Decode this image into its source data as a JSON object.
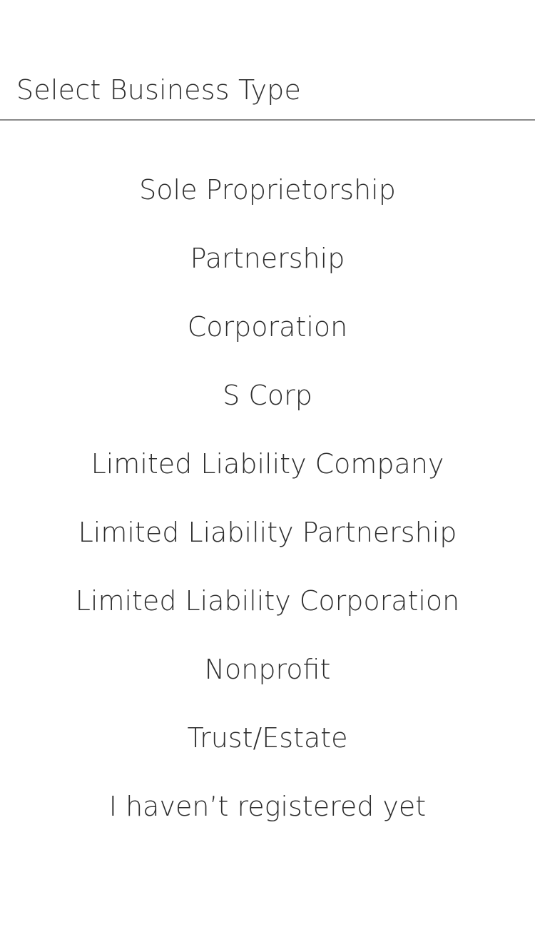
{
  "header": {
    "title": "Select Business Type"
  },
  "options": [
    "Sole Proprietorship",
    "Partnership",
    "Corporation",
    "S Corp",
    "Limited Liability Company",
    "Limited Liability Partnership",
    "Limited Liability Corporation",
    "Nonprofit",
    "Trust/Estate",
    "I haven’t registered yet"
  ],
  "colors": {
    "background": "#ffffff",
    "text": "#2e2e2e",
    "divider": "#8a8a8a"
  }
}
